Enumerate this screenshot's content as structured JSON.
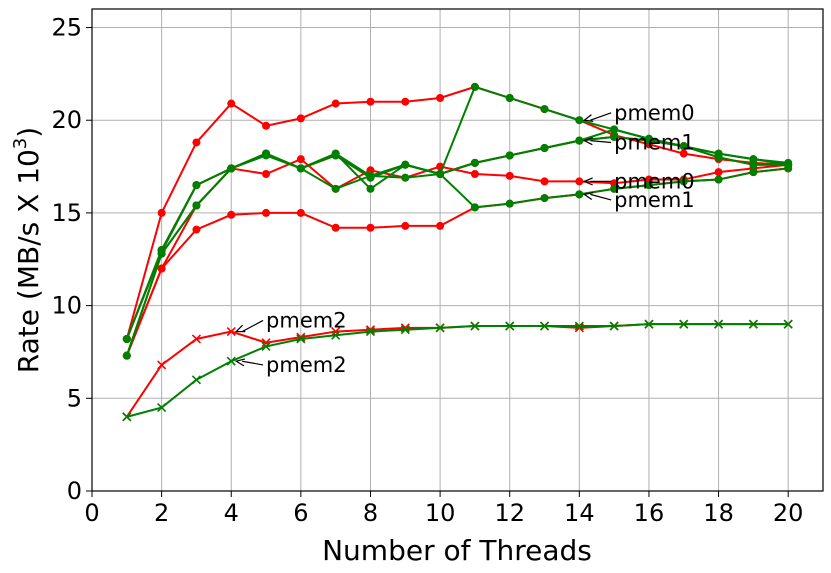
{
  "chart_data": {
    "type": "line",
    "xlabel": "Number of Threads",
    "ylabel_main": "Rate (MB/s X 10",
    "ylabel_exp": "3",
    "ylabel_close": ")",
    "xlim": [
      0,
      21
    ],
    "ylim": [
      0,
      26
    ],
    "xticks": [
      0,
      2,
      4,
      6,
      8,
      10,
      12,
      14,
      16,
      18,
      20
    ],
    "yticks": [
      0,
      5,
      10,
      15,
      20,
      25
    ],
    "grid": true,
    "colors": {
      "red": "#ff0000",
      "green": "#008000"
    },
    "x": [
      1,
      2,
      3,
      4,
      5,
      6,
      7,
      8,
      9,
      10,
      11,
      12,
      13,
      14,
      15,
      16,
      17,
      18,
      19,
      20
    ],
    "series": [
      {
        "color": "red",
        "marker": "circle",
        "values": [
          8.2,
          15.0,
          18.8,
          20.9,
          19.7,
          20.1,
          20.9,
          21.0,
          21.0,
          21.2,
          21.8,
          21.2,
          20.6,
          20.0,
          19.2,
          18.7,
          18.2,
          17.9,
          17.7,
          17.6
        ]
      },
      {
        "color": "red",
        "marker": "circle",
        "values": [
          8.2,
          13.0,
          16.5,
          17.4,
          18.2,
          17.4,
          18.1,
          16.9,
          17.6,
          17.1,
          17.7,
          18.1,
          18.5,
          18.9,
          19.1,
          18.9,
          18.6,
          18.0,
          17.6,
          17.6
        ]
      },
      {
        "color": "red",
        "marker": "circle",
        "values": [
          7.3,
          12.0,
          15.4,
          17.4,
          17.1,
          17.9,
          16.3,
          17.3,
          16.9,
          17.5,
          17.1,
          17.0,
          16.7,
          16.7,
          16.6,
          16.8,
          16.8,
          17.2,
          17.4,
          17.6
        ]
      },
      {
        "color": "red",
        "marker": "circle",
        "values": [
          7.3,
          12.0,
          14.1,
          14.9,
          15.0,
          15.0,
          14.2,
          14.2,
          14.3,
          14.3,
          15.3,
          15.5,
          15.8,
          16.0,
          16.3,
          16.5,
          16.7,
          16.8,
          17.2,
          17.4
        ]
      },
      {
        "color": "green",
        "marker": "circle",
        "values": [
          8.2,
          13.0,
          16.5,
          17.4,
          18.2,
          17.4,
          18.1,
          16.9,
          17.6,
          17.1,
          17.7,
          18.1,
          18.5,
          18.9,
          19.1,
          18.9,
          18.6,
          18.0,
          17.6,
          17.6
        ]
      },
      {
        "color": "green",
        "marker": "circle",
        "values": [
          7.3,
          12.8,
          15.4,
          17.4,
          18.2,
          17.4,
          18.2,
          17.0,
          17.6,
          17.1,
          17.7,
          18.1,
          18.5,
          18.9,
          19.5,
          19.0,
          18.6,
          18.2,
          17.9,
          17.7
        ]
      },
      {
        "color": "green",
        "marker": "circle",
        "values": [
          8.2,
          12.9,
          16.5,
          17.4,
          18.1,
          17.4,
          18.2,
          16.3,
          17.6,
          17.1,
          21.8,
          21.2,
          20.6,
          20.0,
          19.5,
          19.0,
          18.6,
          18.2,
          17.9,
          17.6
        ]
      },
      {
        "color": "green",
        "marker": "circle",
        "values": [
          7.3,
          12.8,
          15.4,
          17.4,
          18.2,
          17.4,
          16.3,
          17.0,
          16.9,
          17.1,
          15.3,
          15.5,
          15.8,
          16.0,
          16.3,
          16.5,
          16.7,
          16.8,
          17.2,
          17.4
        ]
      },
      {
        "color": "red",
        "marker": "x",
        "values": [
          4.0,
          6.8,
          8.2,
          8.6,
          8.0,
          8.3,
          8.6,
          8.7,
          8.8,
          8.8,
          8.9,
          8.9,
          8.9,
          8.8,
          8.9,
          9.0,
          9.0,
          9.0,
          9.0,
          9.0
        ]
      },
      {
        "color": "green",
        "marker": "x",
        "values": [
          4.0,
          4.5,
          6.0,
          7.0,
          7.8,
          8.2,
          8.4,
          8.6,
          8.7,
          8.8,
          8.9,
          8.9,
          8.9,
          8.9,
          8.9,
          9.0,
          9.0,
          9.0,
          9.0,
          9.0
        ]
      }
    ],
    "annotations": [
      {
        "text": "pmem0",
        "point": [
          14,
          20.0
        ],
        "text_pos": [
          15,
          20.4
        ]
      },
      {
        "text": "pmem1",
        "point": [
          14,
          18.9
        ],
        "text_pos": [
          15,
          18.8
        ]
      },
      {
        "text": "pmem0",
        "point": [
          14,
          16.7
        ],
        "text_pos": [
          15,
          16.7
        ]
      },
      {
        "text": "pmem1",
        "point": [
          14,
          16.0
        ],
        "text_pos": [
          15,
          15.7
        ]
      },
      {
        "text": "pmem2",
        "point": [
          4,
          8.6
        ],
        "text_pos": [
          5,
          9.2
        ]
      },
      {
        "text": "pmem2",
        "point": [
          4,
          7.0
        ],
        "text_pos": [
          5,
          6.8
        ]
      }
    ]
  }
}
